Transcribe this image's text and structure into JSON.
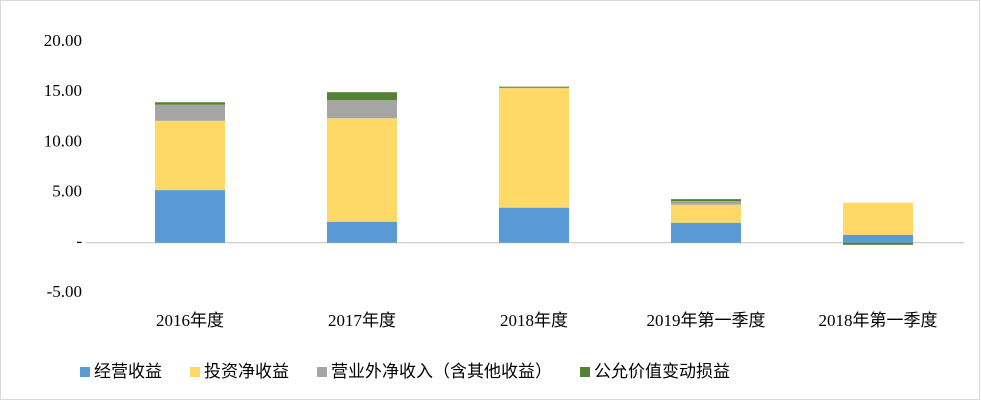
{
  "chart_data": {
    "type": "bar",
    "stacked": true,
    "categories": [
      "2016年度",
      "2017年度",
      "2018年度",
      "2019年第一季度",
      "2018年第一季度"
    ],
    "series": [
      {
        "name": "经营收益",
        "color": "#5b9bd5",
        "values": [
          5.25,
          2.1,
          3.5,
          2.0,
          0.8
        ]
      },
      {
        "name": "投资净收益",
        "color": "#ffd966",
        "values": [
          6.9,
          10.3,
          11.9,
          1.8,
          3.2
        ]
      },
      {
        "name": "营业外净收入（含其他收益）",
        "color": "#a5a5a5",
        "values": [
          1.6,
          1.8,
          0.05,
          0.35,
          0
        ]
      },
      {
        "name": "公允价值变动损益",
        "color": "#548235",
        "values": [
          0.25,
          0.8,
          0.1,
          0.2,
          -0.2
        ]
      }
    ],
    "ylim": [
      -5,
      20
    ],
    "yticks": [
      {
        "value": -5,
        "label": "-5.00"
      },
      {
        "value": 0,
        "label": "-"
      },
      {
        "value": 5,
        "label": "5.00"
      },
      {
        "value": 10,
        "label": "10.00"
      },
      {
        "value": 15,
        "label": "15.00"
      },
      {
        "value": 20,
        "label": "20.00"
      }
    ],
    "legend": "bottom"
  }
}
